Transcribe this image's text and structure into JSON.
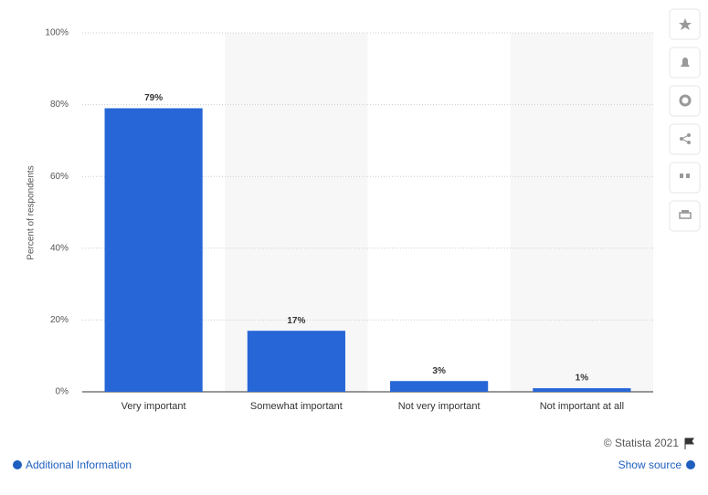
{
  "chart_data": {
    "type": "bar",
    "y_label": "Percent of respondents",
    "categories": [
      "Very important",
      "Somewhat important",
      "Not very important",
      "Not important at all"
    ],
    "values": [
      79,
      17,
      3,
      1
    ],
    "value_labels": [
      "79%",
      "17%",
      "3%",
      "1%"
    ],
    "color": "#2766d6",
    "ylim": [
      0,
      100
    ],
    "yticks": [
      {
        "value": 0,
        "label": "0%"
      },
      {
        "value": 20,
        "label": "20%"
      },
      {
        "value": 40,
        "label": "40%"
      },
      {
        "value": 60,
        "label": "60%"
      },
      {
        "value": 80,
        "label": "80%"
      },
      {
        "value": 100,
        "label": "100%"
      }
    ],
    "grid": true
  },
  "footer": {
    "copyright": "© Statista 2021",
    "additional_info": "Additional Information",
    "show_source": "Show source"
  }
}
